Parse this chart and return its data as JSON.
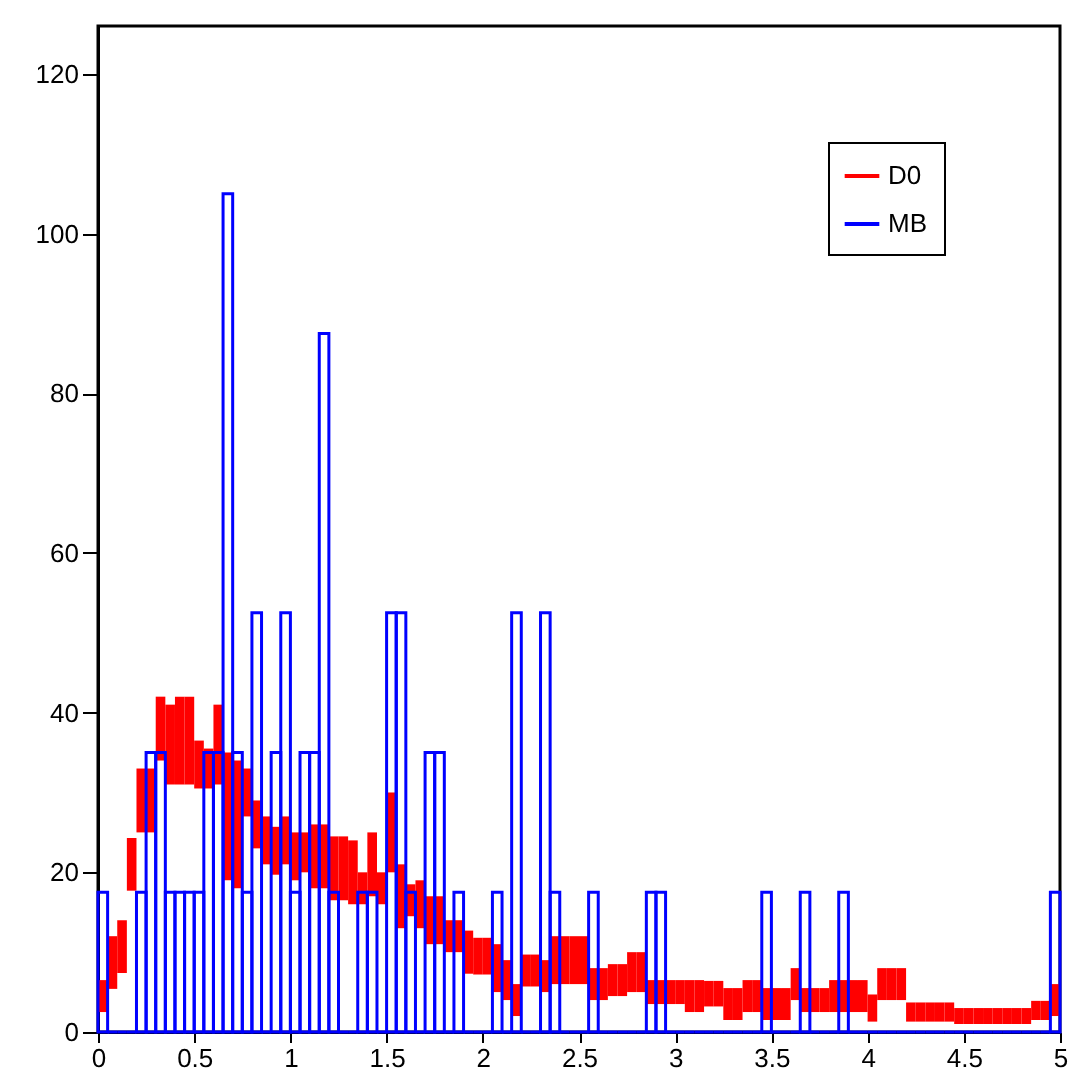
{
  "chart_data": {
    "type": "histogram",
    "bins": [
      0,
      0.05,
      0.1,
      0.15,
      0.2,
      0.25,
      0.3,
      0.35,
      0.4,
      0.45,
      0.5,
      0.55,
      0.6,
      0.65,
      0.7,
      0.75,
      0.8,
      0.85,
      0.9,
      0.95,
      1,
      1.05,
      1.1,
      1.15,
      1.2,
      1.25,
      1.3,
      1.35,
      1.4,
      1.45,
      1.5,
      1.55,
      1.6,
      1.65,
      1.7,
      1.75,
      1.8,
      1.85,
      1.9,
      1.95,
      2,
      2.05,
      2.1,
      2.15,
      2.2,
      2.25,
      2.3,
      2.35,
      2.4,
      2.45,
      2.5,
      2.55,
      2.6,
      2.65,
      2.7,
      2.75,
      2.8,
      2.85,
      2.9,
      2.95,
      3,
      3.05,
      3.1,
      3.15,
      3.2,
      3.25,
      3.3,
      3.35,
      3.4,
      3.45,
      3.5,
      3.55,
      3.6,
      3.65,
      3.7,
      3.75,
      3.8,
      3.85,
      3.9,
      3.95,
      4,
      4.05,
      4.1,
      4.15,
      4.2,
      4.25,
      4.3,
      4.35,
      4.4,
      4.45,
      4.5,
      4.55,
      4.6,
      4.65,
      4.7,
      4.75,
      4.8,
      4.85,
      4.9,
      4.95,
      5
    ],
    "series": [
      {
        "name": "D0",
        "color": "#ff0000",
        "base": [
          2.5,
          5.4,
          7.4,
          17.7,
          25,
          25,
          34,
          31,
          31,
          31,
          30.5,
          30.5,
          31,
          19,
          18,
          27,
          23,
          21,
          19.7,
          21,
          19,
          20,
          18,
          18,
          16.5,
          16.5,
          16,
          16,
          17,
          16,
          20,
          13,
          14.5,
          13,
          11,
          11,
          10,
          10,
          7.3,
          7.2,
          7.2,
          5,
          4,
          2,
          5.7,
          5.7,
          5,
          6,
          6,
          6,
          6,
          4,
          4,
          4.5,
          4.5,
          5,
          5,
          3.5,
          3.5,
          3.5,
          3.5,
          2.5,
          2.5,
          3.2,
          3.2,
          1.5,
          1.5,
          2.5,
          2.5,
          1.5,
          1.5,
          1.5,
          4,
          2.5,
          2.5,
          2.5,
          2.5,
          2.5,
          2.5,
          2.5,
          1.3,
          4,
          4,
          4,
          1.3,
          1.3,
          1.3,
          1.3,
          1.3,
          1,
          1,
          1,
          1,
          1,
          1,
          1,
          1,
          1.5,
          1.5,
          2
        ],
        "values": [
          4,
          6.6,
          6.6,
          6.6,
          8,
          8,
          8,
          10,
          11,
          11,
          6,
          5,
          10,
          16,
          16,
          6,
          6,
          6,
          6,
          6,
          6,
          5,
          8,
          8,
          8,
          8,
          8,
          4,
          8,
          4,
          10,
          8,
          4,
          6,
          6,
          6,
          4,
          4,
          5.4,
          4.6,
          4.6,
          6,
          5,
          4,
          4,
          4,
          4,
          6,
          6,
          6,
          6,
          4,
          4,
          4,
          4,
          5,
          5,
          3,
          3,
          3,
          3,
          4,
          4,
          3.2,
          3.2,
          4,
          4,
          4,
          4,
          4,
          4,
          4,
          4,
          3,
          3,
          3,
          4,
          4,
          4,
          4,
          3.4,
          4,
          4,
          4,
          2.4,
          2.4,
          2.4,
          2.4,
          2.4,
          2,
          2,
          2,
          2,
          2,
          2,
          2,
          2,
          2.4,
          2.4,
          4
        ]
      },
      {
        "name": "MB",
        "color": "#0000ff",
        "values": [
          17.5,
          0,
          0,
          0,
          17.5,
          35,
          35,
          17.5,
          17.5,
          17.5,
          17.5,
          35,
          35,
          105,
          35,
          17.5,
          52.5,
          0,
          35,
          52.5,
          17.5,
          35,
          35,
          87.5,
          17.5,
          0,
          0,
          17.5,
          17.5,
          0,
          52.5,
          52.5,
          17.5,
          0,
          35,
          35,
          0,
          17.5,
          0,
          0,
          0,
          17.5,
          0,
          52.5,
          0,
          0,
          52.5,
          17.5,
          0,
          0,
          0,
          17.5,
          0,
          0,
          0,
          0,
          0,
          17.5,
          17.5,
          0,
          0,
          0,
          0,
          0,
          0,
          0,
          0,
          0,
          0,
          17.5,
          0,
          0,
          0,
          17.5,
          0,
          0,
          0,
          17.5,
          0,
          0,
          0,
          0,
          0,
          0,
          0,
          0,
          0,
          0,
          0,
          0,
          0,
          0,
          0,
          0,
          0,
          0,
          0,
          0,
          0,
          17.5
        ]
      }
    ],
    "xlim": [
      0,
      5
    ],
    "xticks": [
      0,
      0.5,
      1,
      1.5,
      2,
      2.5,
      3,
      3.5,
      4,
      4.5,
      5
    ],
    "ylim": [
      0,
      126
    ],
    "yticks": [
      0,
      20,
      40,
      60,
      80,
      100,
      120
    ],
    "legend": "top right"
  }
}
